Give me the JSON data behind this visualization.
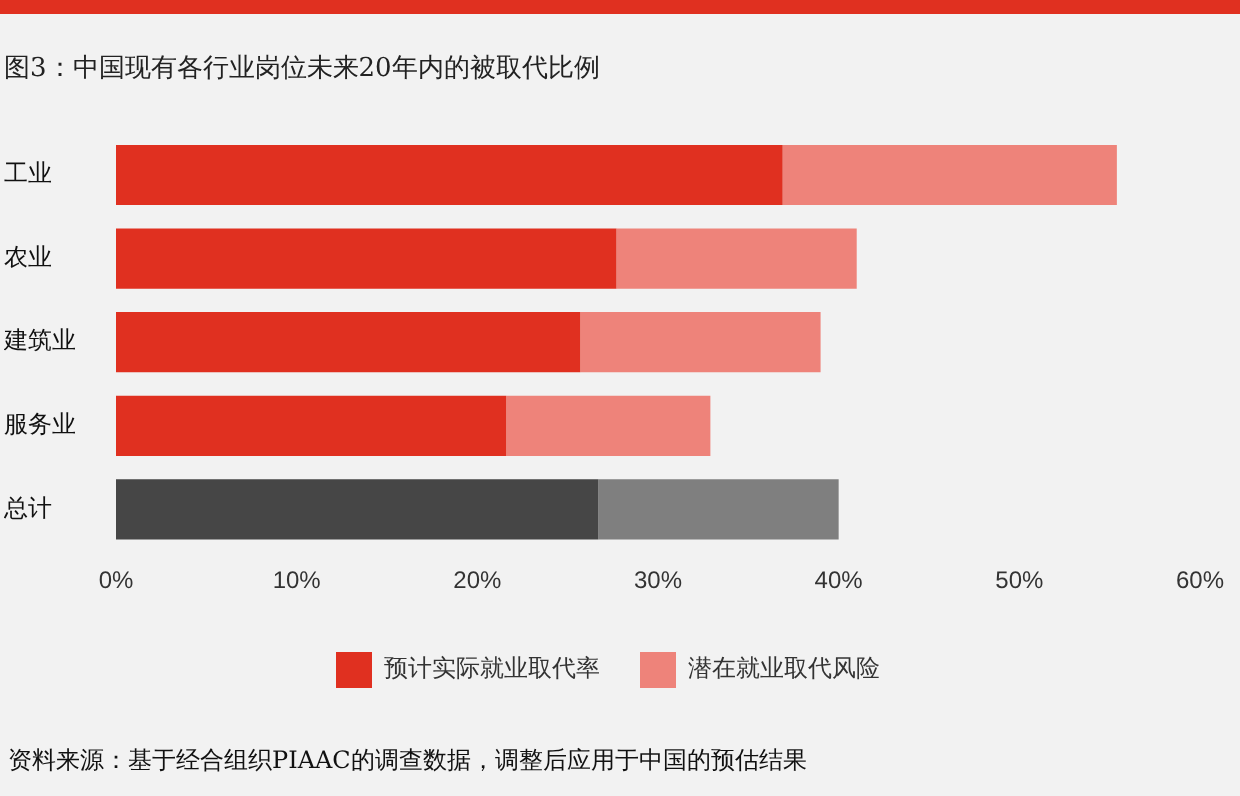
{
  "chart_data": {
    "type": "bar",
    "orientation": "horizontal",
    "stacked": true,
    "title": "图3：中国现有各行业岗位未来20年内的被取代比例",
    "categories": [
      "工业",
      "农业",
      "建筑业",
      "服务业",
      "总计"
    ],
    "series": [
      {
        "name": "预计实际就业取代率",
        "color": "#e03020",
        "colors": [
          "#e03020",
          "#e03020",
          "#e03020",
          "#e03020",
          "#464646"
        ],
        "values": [
          36.9,
          27.7,
          25.7,
          21.6,
          26.7
        ]
      },
      {
        "name": "潜在就业取代风险",
        "color": "#ee837a",
        "colors": [
          "#ee837a",
          "#ee837a",
          "#ee837a",
          "#ee837a",
          "#7f7f7f"
        ],
        "values": [
          18.5,
          13.3,
          13.3,
          11.3,
          13.3
        ]
      }
    ],
    "xlim": [
      0,
      60
    ],
    "xticks": [
      {
        "value": 0,
        "label": "0%"
      },
      {
        "value": 10,
        "label": "10%"
      },
      {
        "value": 20,
        "label": "20%"
      },
      {
        "value": 30,
        "label": "30%"
      },
      {
        "value": 40,
        "label": "40%"
      },
      {
        "value": 50,
        "label": "50%"
      },
      {
        "value": 60,
        "label": "60%"
      }
    ],
    "grid": false,
    "legend": "bottom",
    "annotations": [
      "资料来源：基于经合组织PIAAC的调查数据，调整后应用于中国的预估结果"
    ]
  }
}
